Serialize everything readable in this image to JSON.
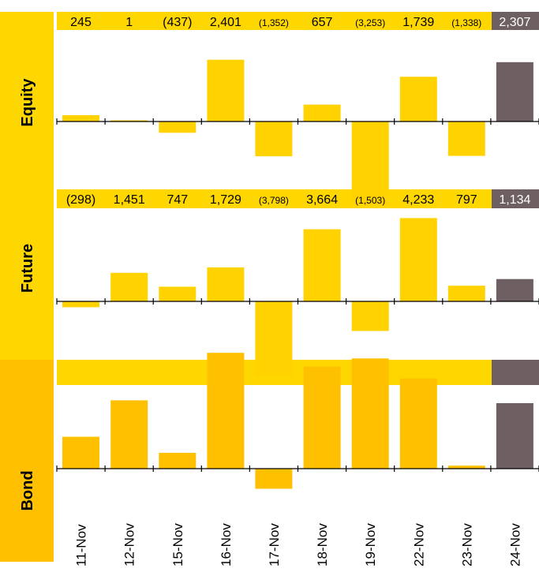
{
  "chart_data": {
    "type": "bar",
    "categories": [
      "11-Nov",
      "12-Nov",
      "15-Nov",
      "16-Nov",
      "17-Nov",
      "18-Nov",
      "19-Nov",
      "22-Nov",
      "23-Nov",
      "24-Nov"
    ],
    "panels": [
      {
        "name": "Equity",
        "values": [
          245,
          1,
          -437,
          2401,
          -1352,
          657,
          -3253,
          1739,
          -1338,
          2307
        ],
        "value_labels": [
          "245",
          "1",
          "(437)",
          "2,401",
          "(1,352)",
          "657",
          "(3,253)",
          "1,739",
          "(1,338)",
          "2,307"
        ],
        "ylim": [
          -6500,
          6500
        ]
      },
      {
        "name": "Future",
        "values": [
          -298,
          1451,
          747,
          1729,
          -3798,
          3664,
          -1503,
          4233,
          797,
          1134
        ],
        "value_labels": [
          "(298)",
          "1,451",
          "747",
          "1,729",
          "(3,798)",
          "3,664",
          "(1,503)",
          "4,233",
          "797",
          "1,134"
        ],
        "ylim": [
          -8500,
          8500
        ]
      },
      {
        "name": "Bond",
        "values": [
          1810,
          3880,
          900,
          6580,
          -1142,
          5800,
          6260,
          5120,
          170,
          3720
        ],
        "ylim": [
          -9500,
          9500
        ]
      }
    ],
    "colors": {
      "bar": "#FFD200",
      "bond_bar": "#FFC000",
      "last_bar": "#6E6062",
      "panel_label_bg": "#FFD700",
      "bond_label_bg": "#FFC000",
      "value_strip": "#FFD700"
    }
  }
}
